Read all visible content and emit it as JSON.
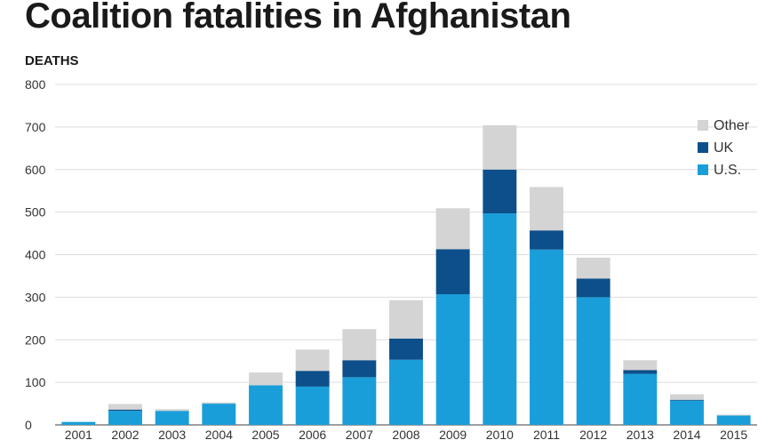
{
  "chart_data": {
    "type": "bar",
    "stacked": true,
    "title": "Coalition fatalities in Afghanistan",
    "ylabel": "DEATHS",
    "xlabel": "",
    "ylim": [
      0,
      800
    ],
    "yticks": [
      0,
      100,
      200,
      300,
      400,
      500,
      600,
      700,
      800
    ],
    "grid": true,
    "legend_position": "top-right",
    "categories": [
      "2001",
      "2002",
      "2003",
      "2004",
      "2005",
      "2006",
      "2007",
      "2008",
      "2009",
      "2010",
      "2011",
      "2012",
      "2013",
      "2014",
      "2015"
    ],
    "series": [
      {
        "name": "U.S.",
        "color": "#1a9ed9",
        "values": [
          7,
          33,
          33,
          50,
          93,
          90,
          112,
          153,
          307,
          497,
          412,
          300,
          120,
          57,
          22
        ]
      },
      {
        "name": "UK",
        "color": "#0d4f8a",
        "values": [
          0,
          3,
          0,
          0,
          0,
          37,
          40,
          50,
          106,
          103,
          45,
          44,
          9,
          2,
          0
        ]
      },
      {
        "name": "Other",
        "color": "#d4d4d4",
        "values": [
          0,
          13,
          4,
          3,
          30,
          50,
          73,
          90,
          96,
          104,
          102,
          49,
          23,
          13,
          2
        ]
      }
    ],
    "legend_order": [
      "Other",
      "UK",
      "U.S."
    ]
  }
}
